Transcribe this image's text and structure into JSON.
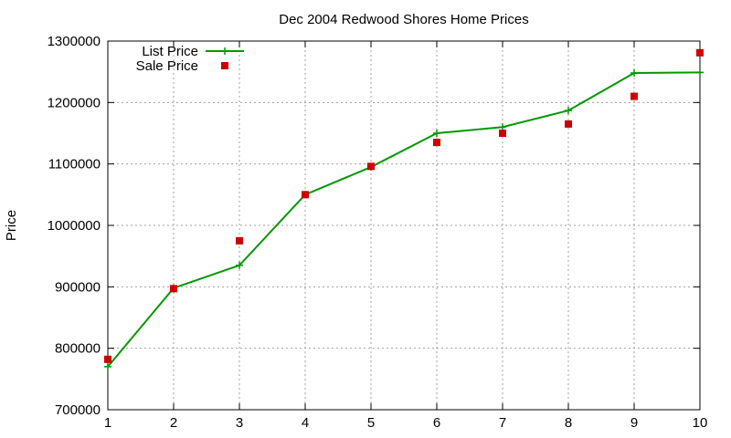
{
  "chart_data": {
    "type": "line",
    "title": "Dec 2004 Redwood Shores Home Prices",
    "xlabel": "",
    "ylabel": "Price",
    "xlim": [
      1,
      10
    ],
    "ylim": [
      700000,
      1300000
    ],
    "x_ticks": [
      1,
      2,
      3,
      4,
      5,
      6,
      7,
      8,
      9,
      10
    ],
    "y_ticks": [
      700000,
      800000,
      900000,
      1000000,
      1100000,
      1200000,
      1300000
    ],
    "grid": true,
    "legend_position": "top-left",
    "series": [
      {
        "name": "List Price",
        "style": "line+cross",
        "color": "#009900",
        "x": [
          1,
          2,
          3,
          4,
          5,
          6,
          7,
          8,
          9,
          10
        ],
        "values": [
          770000,
          898000,
          935000,
          1050000,
          1095000,
          1150000,
          1160000,
          1187000,
          1248000,
          1249000
        ]
      },
      {
        "name": "Sale Price",
        "style": "square",
        "color": "#cc0000",
        "x": [
          1,
          2,
          3,
          4,
          5,
          6,
          7,
          8,
          9,
          10
        ],
        "values": [
          782000,
          897000,
          975000,
          1050000,
          1096000,
          1135000,
          1150000,
          1165000,
          1210000,
          1281000
        ]
      }
    ]
  }
}
